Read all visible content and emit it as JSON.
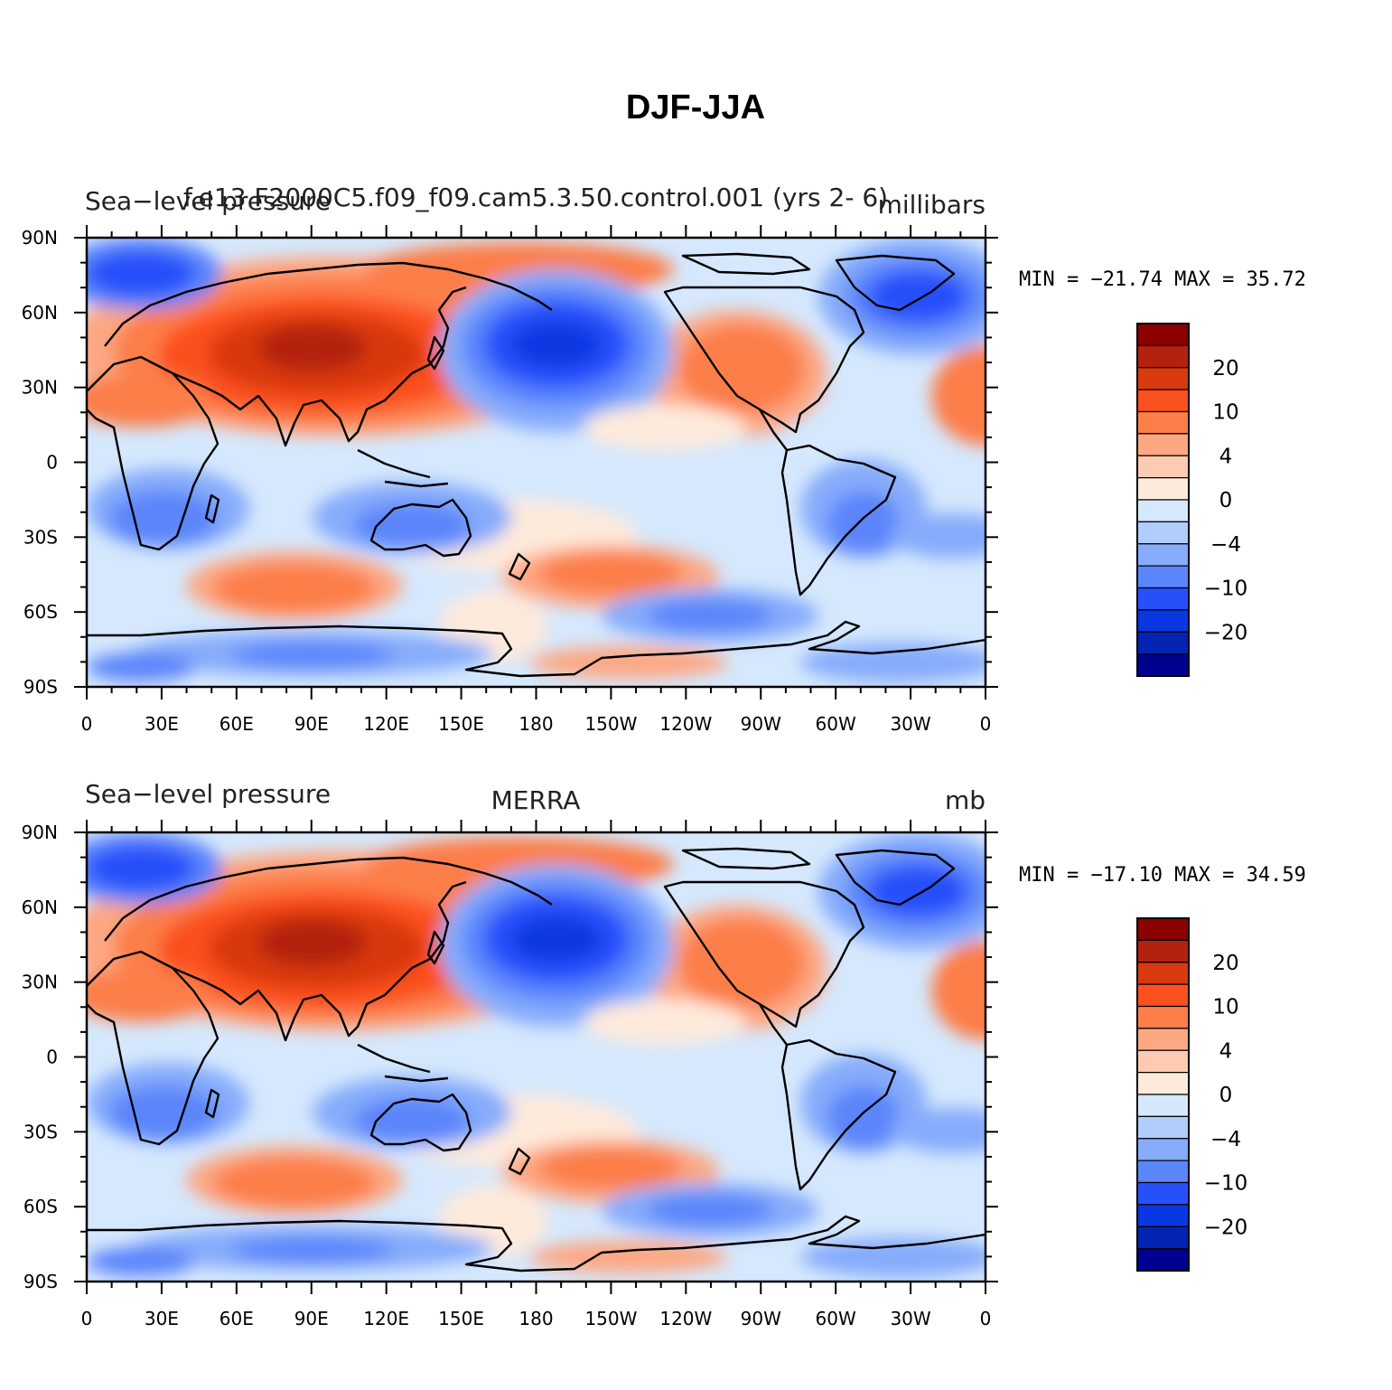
{
  "figure": {
    "title": "DJF-JJA"
  },
  "lon_labels": [
    "0",
    "30E",
    "60E",
    "90E",
    "120E",
    "150E",
    "180",
    "150W",
    "120W",
    "90W",
    "60W",
    "30W",
    "0"
  ],
  "lat_labels": [
    "90N",
    "60N",
    "30N",
    "0",
    "30S",
    "60S",
    "90S"
  ],
  "colorbar": {
    "labels": [
      "20",
      "10",
      "4",
      "0",
      "−4",
      "−10",
      "−20"
    ],
    "colors": [
      "#8b0000",
      "#b2220f",
      "#d8390f",
      "#fb501f",
      "#fc7e49",
      "#fda783",
      "#fccbb1",
      "#feeadb",
      "#d5e8fd",
      "#b1cdfc",
      "#86acfb",
      "#5b85fb",
      "#2850fa",
      "#0937e2",
      "#0324b2",
      "#000090"
    ]
  },
  "panels": [
    {
      "title_left": "Sea−level pressure",
      "title_center": "f.e13.F2000C5.f09_f09.cam5.3.50.control.001 (yrs 2- 6)",
      "units": "millibars",
      "min_max": "MIN = −21.74 MAX =  35.72"
    },
    {
      "title_left": "Sea−level pressure",
      "title_center": "MERRA",
      "units": "mb",
      "min_max": "MIN = −17.10 MAX =  34.59"
    }
  ]
}
